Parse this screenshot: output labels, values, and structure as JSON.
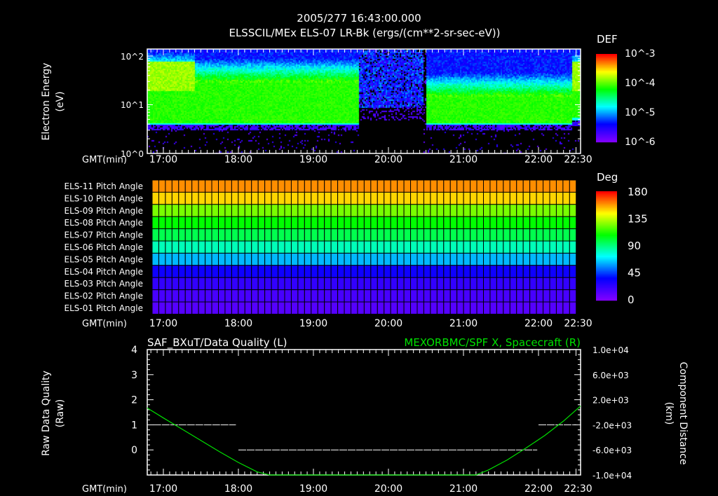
{
  "header": {
    "timestamp": "2005/277 16:43:00.000",
    "title": "ELSSCIL/MEx ELS-07 LR-Bk  (ergs/(cm**2-sr-sec-eV))"
  },
  "time_axis": {
    "label": "GMT(min)",
    "ticks": [
      "17:00",
      "18:00",
      "19:00",
      "20:00",
      "21:00",
      "22:00",
      "22:30"
    ]
  },
  "chart_data": [
    {
      "type": "heatmap",
      "name": "spectrogram",
      "ylabel": "Electron Energy (eV)",
      "ylabel_lines": [
        "Electron Energy",
        "(eV)"
      ],
      "yscale": "log",
      "ylim": [
        1,
        140
      ],
      "ytick_labels": [
        "10^0",
        "10^1",
        "10^2"
      ],
      "colorbar": {
        "title": "DEF",
        "scale": "log",
        "range": [
          1e-06,
          0.001
        ],
        "tick_labels": [
          "10^-3",
          "10^-4",
          "10^-5",
          "10^-6"
        ]
      },
      "xlim": [
        "16:47",
        "22:34"
      ],
      "regimes": [
        {
          "start": "16:47",
          "end": "17:25",
          "state": "hot plasma",
          "lower_cutoff_eV": 4,
          "peak_eV": 40
        },
        {
          "start": "17:25",
          "end": "19:36",
          "state": "plasma",
          "lower_cutoff_eV": 4,
          "peak_eV": 30
        },
        {
          "start": "19:36",
          "end": "20:27",
          "state": "depleted",
          "lower_cutoff_eV": 6,
          "peak_eV": 0
        },
        {
          "start": "20:27",
          "end": "20:30",
          "state": "gap",
          "lower_cutoff_eV": 0,
          "peak_eV": 0
        },
        {
          "start": "20:30",
          "end": "22:26",
          "state": "plasma",
          "lower_cutoff_eV": 4,
          "peak_eV": 15
        },
        {
          "start": "22:26",
          "end": "22:34",
          "state": "hot plasma",
          "lower_cutoff_eV": 5,
          "peak_eV": 40
        }
      ]
    },
    {
      "type": "heatmap",
      "name": "pitch-angle",
      "categories": [
        "ELS-11 Pitch Angle",
        "ELS-10 Pitch Angle",
        "ELS-09 Pitch Angle",
        "ELS-08 Pitch Angle",
        "ELS-07 Pitch Angle",
        "ELS-06 Pitch Angle",
        "ELS-05 Pitch Angle",
        "ELS-04 Pitch Angle",
        "ELS-03 Pitch Angle",
        "ELS-02 Pitch Angle",
        "ELS-01 Pitch Angle"
      ],
      "values_deg": [
        160,
        150,
        125,
        108,
        97,
        82,
        62,
        32,
        22,
        16,
        12
      ],
      "end_values_deg": [
        110,
        115,
        112,
        105,
        95,
        85,
        70,
        55,
        45,
        40,
        38
      ],
      "end_change_time": "22:27",
      "colorbar": {
        "title": "Deg",
        "range": [
          0,
          180
        ],
        "tick_labels": [
          "180",
          "135",
          "90",
          "45",
          "0"
        ]
      }
    },
    {
      "type": "line",
      "name": "quality-and-position",
      "title_left": "SAF_BXuT/Data Quality (L)",
      "title_right": "MEXORBMC/SPF X, Spacecraft (R)",
      "ylabel_left_lines": [
        "Raw Data Quality",
        "(Raw)"
      ],
      "ylabel_right_lines": [
        "Component Distance",
        "(km)"
      ],
      "ylim_left": [
        -1,
        4
      ],
      "ytick_labels_left": [
        "4",
        "3",
        "2",
        "1",
        "0"
      ],
      "ylim_right": [
        -10000,
        10000
      ],
      "ytick_labels_right": [
        "1.0e+04",
        "6.0e+03",
        "2.0e+03",
        "-2.0e+03",
        "-6.0e+03",
        "-1.0e+04"
      ],
      "series": [
        {
          "name": "Data Quality",
          "axis": "left",
          "color": "#ffffff",
          "style": "dashed",
          "segments": [
            {
              "start": "16:52",
              "end": "17:58",
              "value": 1
            },
            {
              "start": "18:00",
              "end": "21:59",
              "value": 0
            },
            {
              "start": "22:00",
              "end": "22:30",
              "value": 1
            }
          ]
        },
        {
          "name": "Spacecraft X",
          "axis": "right",
          "color": "#00e000",
          "x": [
            "16:47",
            "17:00",
            "17:15",
            "17:30",
            "17:45",
            "18:00",
            "18:15",
            "18:25",
            "21:10",
            "21:20",
            "21:35",
            "21:50",
            "22:05",
            "22:20",
            "22:34"
          ],
          "y": [
            700,
            -900,
            -2700,
            -4500,
            -6300,
            -8000,
            -9500,
            -10000,
            -10000,
            -9200,
            -7600,
            -5700,
            -3700,
            -1400,
            1000
          ]
        }
      ]
    }
  ]
}
